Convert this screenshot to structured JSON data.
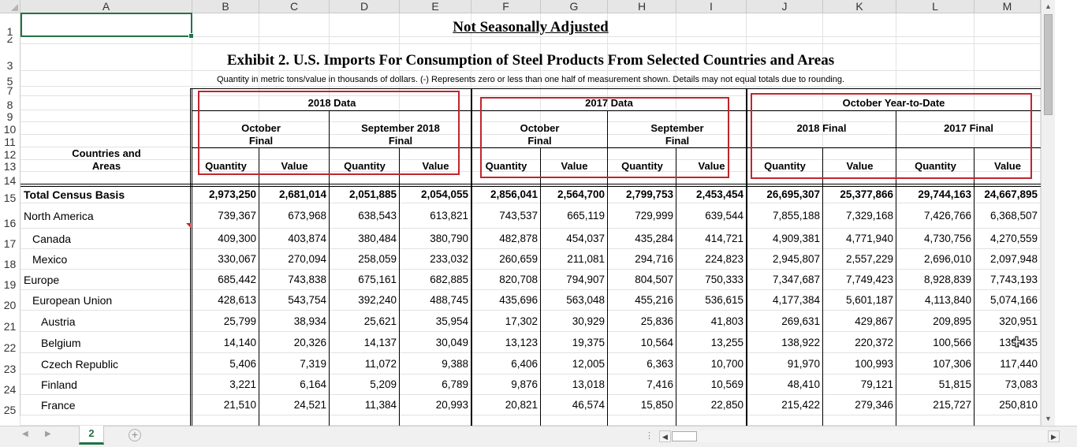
{
  "columns": [
    "A",
    "B",
    "C",
    "D",
    "E",
    "F",
    "G",
    "H",
    "I",
    "J",
    "K",
    "L",
    "M"
  ],
  "row_labels": [
    "1",
    "2",
    "3",
    "5",
    "7",
    "8",
    "9",
    "10",
    "11",
    "12",
    "13",
    "14",
    "15",
    "16",
    "17",
    "18",
    "19",
    "20",
    "21",
    "22",
    "23",
    "24",
    "25"
  ],
  "titles": {
    "not_seasonally_adjusted": "Not Seasonally Adjusted",
    "exhibit": "Exhibit 2.  U.S. Imports For Consumption of Steel Products From Selected Countries and Areas",
    "note": "Quantity in metric tons/value in thousands of dollars.  (-) Represents zero or less than one half of measurement shown.  Details may not equal totals due to rounding."
  },
  "headers": {
    "countries_and_areas_line1": "Countries and",
    "countries_and_areas_line2": "Areas",
    "group_2018": "2018 Data",
    "group_2017": "2017 Data",
    "group_ytd": "October Year-to-Date",
    "oct_2018_line1": "October",
    "oct_2018_line2": "Final",
    "sep_2018_line1": "September 2018",
    "sep_2018_line2": "Final",
    "oct_2017_line1": "October",
    "oct_2017_line2": "Final",
    "sep_2017_line1": "September",
    "sep_2017_line2": "Final",
    "final_2018": "2018 Final",
    "final_2017": "2017 Final",
    "quantity": "Quantity",
    "value": "Value"
  },
  "rows": [
    {
      "label": "Total Census Basis",
      "bold": true,
      "indent": 0,
      "values": [
        "2,973,250",
        "2,681,014",
        "2,051,885",
        "2,054,055",
        "2,856,041",
        "2,564,700",
        "2,799,753",
        "2,453,454",
        "26,695,307",
        "25,377,866",
        "29,744,163",
        "24,667,895"
      ]
    },
    {
      "label": "North America",
      "indent": 0,
      "values": [
        "739,367",
        "673,968",
        "638,543",
        "613,821",
        "743,537",
        "665,119",
        "729,999",
        "639,544",
        "7,855,188",
        "7,329,168",
        "7,426,766",
        "6,368,507"
      ]
    },
    {
      "label": "Canada",
      "indent": 1,
      "values": [
        "409,300",
        "403,874",
        "380,484",
        "380,790",
        "482,878",
        "454,037",
        "435,284",
        "414,721",
        "4,909,381",
        "4,771,940",
        "4,730,756",
        "4,270,559"
      ]
    },
    {
      "label": "Mexico",
      "indent": 1,
      "values": [
        "330,067",
        "270,094",
        "258,059",
        "233,032",
        "260,659",
        "211,081",
        "294,716",
        "224,823",
        "2,945,807",
        "2,557,229",
        "2,696,010",
        "2,097,948"
      ]
    },
    {
      "label": "Europe",
      "indent": 0,
      "values": [
        "685,442",
        "743,838",
        "675,161",
        "682,885",
        "820,708",
        "794,907",
        "804,507",
        "750,333",
        "7,347,687",
        "7,749,423",
        "8,928,839",
        "7,743,193"
      ]
    },
    {
      "label": "European Union",
      "indent": 1,
      "values": [
        "428,613",
        "543,754",
        "392,240",
        "488,745",
        "435,696",
        "563,048",
        "455,216",
        "536,615",
        "4,177,384",
        "5,601,187",
        "4,113,840",
        "5,074,166"
      ]
    },
    {
      "label": "Austria",
      "indent": 2,
      "values": [
        "25,799",
        "38,934",
        "25,621",
        "35,954",
        "17,302",
        "30,929",
        "25,836",
        "41,803",
        "269,631",
        "429,867",
        "209,895",
        "320,951"
      ]
    },
    {
      "label": "Belgium",
      "indent": 2,
      "values": [
        "14,140",
        "20,326",
        "14,137",
        "30,049",
        "13,123",
        "19,375",
        "10,564",
        "13,255",
        "138,922",
        "220,372",
        "100,566",
        "139,435"
      ]
    },
    {
      "label": "Czech Republic",
      "indent": 2,
      "values": [
        "5,406",
        "7,319",
        "11,072",
        "9,388",
        "6,406",
        "12,005",
        "6,363",
        "10,700",
        "91,970",
        "100,993",
        "107,306",
        "117,440"
      ]
    },
    {
      "label": "Finland",
      "indent": 2,
      "values": [
        "3,221",
        "6,164",
        "5,209",
        "6,789",
        "9,876",
        "13,018",
        "7,416",
        "10,569",
        "48,410",
        "79,121",
        "51,815",
        "73,083"
      ]
    },
    {
      "label": "France",
      "indent": 2,
      "values": [
        "21,510",
        "24,521",
        "11,384",
        "20,993",
        "20,821",
        "46,574",
        "15,850",
        "22,850",
        "215,422",
        "279,346",
        "215,727",
        "250,810"
      ]
    }
  ],
  "sheet_tab": "2",
  "add_sheet_symbol": "+",
  "colors": {
    "accent": "#217346",
    "annotation_box": "#c0262d",
    "header_bg": "#e6e6e6"
  }
}
